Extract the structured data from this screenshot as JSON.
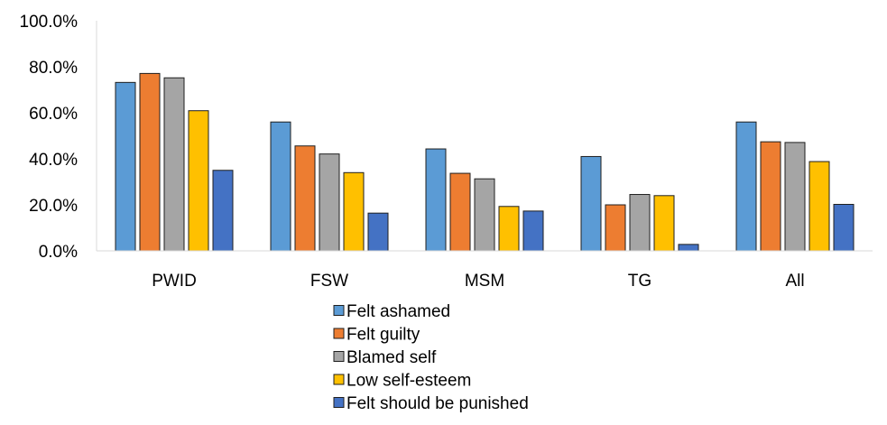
{
  "chart_data": {
    "type": "bar",
    "title": "",
    "xlabel": "",
    "ylabel": "",
    "ylim": [
      0,
      100
    ],
    "yticks": [
      "0.0%",
      "20.0%",
      "40.0%",
      "60.0%",
      "80.0%",
      "100.0%"
    ],
    "grid": false,
    "legend_position": "bottom",
    "categories": [
      "PWID",
      "FSW",
      "MSM",
      "TG",
      "All"
    ],
    "series": [
      {
        "name": "Felt ashamed",
        "color": "#5B9BD5",
        "values": [
          73.2,
          56.0,
          44.3,
          41.0,
          56.0
        ]
      },
      {
        "name": "Felt guilty",
        "color": "#ED7D31",
        "values": [
          77.1,
          45.6,
          33.7,
          20.0,
          47.4
        ]
      },
      {
        "name": "Blamed self",
        "color": "#A5A5A5",
        "values": [
          75.2,
          42.1,
          31.3,
          24.5,
          47.1
        ]
      },
      {
        "name": "Low self-esteem",
        "color": "#FFC000",
        "values": [
          60.9,
          34.0,
          19.3,
          24.0,
          38.8
        ]
      },
      {
        "name": "Felt should be punished",
        "color": "#4472C4",
        "values": [
          35.0,
          16.4,
          17.3,
          2.8,
          20.2
        ]
      }
    ]
  }
}
